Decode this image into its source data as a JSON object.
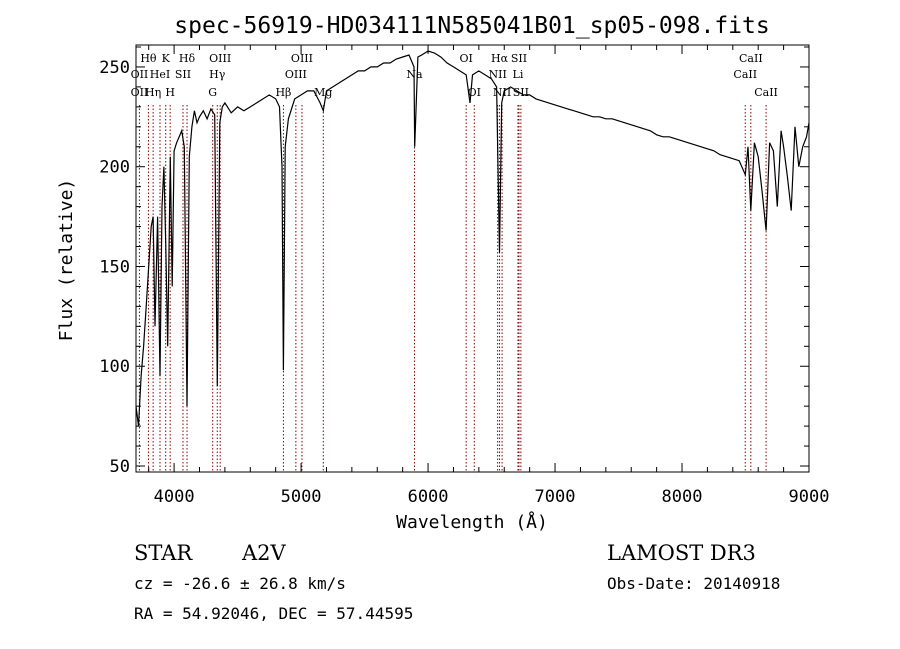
{
  "title": "spec-56919-HD034111N585041B01_sp05-098.fits",
  "info": {
    "class_label": "STAR",
    "subclass": "A2V",
    "survey": "LAMOST DR3",
    "cz_text": "cz = -26.6 ± 26.8 km/s",
    "obs_date_text": "Obs-Date: 20140918",
    "radec_text": "RA =  54.92046, DEC =  57.44595"
  },
  "chart_data": {
    "type": "line",
    "title": "spec-56919-HD034111N585041B01_sp05-098.fits",
    "xlabel": "Wavelength (Å)",
    "ylabel": "Flux (relative)",
    "xlim": [
      3700,
      9000
    ],
    "ylim": [
      47,
      261
    ],
    "x_ticks": [
      4000,
      5000,
      6000,
      7000,
      8000,
      9000
    ],
    "y_ticks": [
      50,
      100,
      150,
      200,
      250
    ],
    "grid": false,
    "legend": "none",
    "line_color": "#000000",
    "marker_color": "#8b0000",
    "series": [
      {
        "x": [
          3700,
          3720,
          3740,
          3760,
          3780,
          3800,
          3820,
          3835,
          3850,
          3870,
          3889,
          3905,
          3920,
          3935,
          3950,
          3970,
          3985,
          4000,
          4020,
          4040,
          4060,
          4080,
          4102,
          4120,
          4140,
          4160,
          4180,
          4200,
          4230,
          4260,
          4290,
          4320,
          4340,
          4360,
          4380,
          4400,
          4450,
          4500,
          4550,
          4600,
          4650,
          4700,
          4750,
          4800,
          4830,
          4850,
          4861,
          4875,
          4900,
          4950,
          5000,
          5050,
          5100,
          5150,
          5175,
          5200,
          5250,
          5300,
          5350,
          5400,
          5450,
          5500,
          5550,
          5600,
          5650,
          5700,
          5750,
          5800,
          5850,
          5889,
          5895,
          5920,
          5950,
          6000,
          6050,
          6100,
          6150,
          6200,
          6250,
          6300,
          6330,
          6350,
          6400,
          6450,
          6500,
          6540,
          6563,
          6580,
          6600,
          6650,
          6700,
          6750,
          6800,
          6850,
          6900,
          6950,
          7000,
          7050,
          7100,
          7150,
          7200,
          7250,
          7300,
          7350,
          7400,
          7450,
          7500,
          7550,
          7600,
          7650,
          7700,
          7750,
          7800,
          7850,
          7900,
          7950,
          8000,
          8050,
          8100,
          8150,
          8200,
          8250,
          8300,
          8350,
          8400,
          8450,
          8498,
          8520,
          8542,
          8570,
          8600,
          8630,
          8662,
          8690,
          8720,
          8750,
          8780,
          8800,
          8830,
          8860,
          8890,
          8920,
          8950,
          8980,
          9000
        ],
        "y": [
          80,
          70,
          95,
          110,
          130,
          150,
          170,
          175,
          120,
          175,
          95,
          180,
          200,
          160,
          110,
          205,
          140,
          208,
          212,
          215,
          218,
          210,
          80,
          205,
          220,
          228,
          222,
          225,
          228,
          224,
          229,
          226,
          90,
          222,
          230,
          232,
          227,
          230,
          228,
          230,
          232,
          234,
          236,
          234,
          230,
          200,
          98,
          210,
          224,
          234,
          236,
          238,
          238,
          232,
          228,
          238,
          240,
          242,
          244,
          246,
          248,
          248,
          250,
          250,
          252,
          252,
          254,
          255,
          256,
          250,
          210,
          255,
          256,
          258,
          257,
          255,
          252,
          250,
          248,
          246,
          232,
          246,
          248,
          246,
          244,
          240,
          157,
          232,
          238,
          240,
          238,
          236,
          236,
          234,
          233,
          232,
          231,
          230,
          229,
          228,
          227,
          226,
          225,
          225,
          224,
          224,
          223,
          222,
          221,
          220,
          219,
          218,
          216,
          215,
          215,
          214,
          213,
          212,
          211,
          210,
          209,
          208,
          206,
          205,
          204,
          203,
          196,
          210,
          178,
          212,
          205,
          188,
          168,
          212,
          208,
          180,
          218,
          210,
          195,
          178,
          220,
          200,
          210,
          215,
          222
        ]
      }
    ],
    "line_markers": [
      {
        "label": "Hθ",
        "x": 3798,
        "row": 1
      },
      {
        "label": "OII",
        "x": 3727,
        "row": 2
      },
      {
        "label": "OII",
        "x": 3727,
        "row": 3
      },
      {
        "label": "K",
        "x": 3934,
        "row": 1
      },
      {
        "label": "HeI",
        "x": 3889,
        "row": 2
      },
      {
        "label": "Hη",
        "x": 3835,
        "row": 3
      },
      {
        "label": "H",
        "x": 3969,
        "row": 3
      },
      {
        "label": "Hδ",
        "x": 4102,
        "row": 1
      },
      {
        "label": "SII",
        "x": 4070,
        "row": 2
      },
      {
        "label": "OIII",
        "x": 4363,
        "row": 1
      },
      {
        "label": "Hγ",
        "x": 4340,
        "row": 2
      },
      {
        "label": "G",
        "x": 4304,
        "row": 3
      },
      {
        "label": "OIII",
        "x": 5007,
        "row": 1
      },
      {
        "label": "OIII",
        "x": 4959,
        "row": 2
      },
      {
        "label": "Hβ",
        "x": 4861,
        "row": 3
      },
      {
        "label": "Mg",
        "x": 5175,
        "row": 3
      },
      {
        "label": "Na",
        "x": 5893,
        "row": 2
      },
      {
        "label": "OI",
        "x": 6300,
        "row": 1
      },
      {
        "label": "OI",
        "x": 6364,
        "row": 3
      },
      {
        "label": "Hα",
        "x": 6563,
        "row": 1
      },
      {
        "label": "SII",
        "x": 6716,
        "row": 1
      },
      {
        "label": "NII",
        "x": 6548,
        "row": 2
      },
      {
        "label": "Li",
        "x": 6708,
        "row": 2
      },
      {
        "label": "NII",
        "x": 6583,
        "row": 3
      },
      {
        "label": "SII",
        "x": 6731,
        "row": 3
      },
      {
        "label": "CaII",
        "x": 8542,
        "row": 1
      },
      {
        "label": "CaII",
        "x": 8498,
        "row": 2
      },
      {
        "label": "CaII",
        "x": 8662,
        "row": 3
      }
    ]
  }
}
